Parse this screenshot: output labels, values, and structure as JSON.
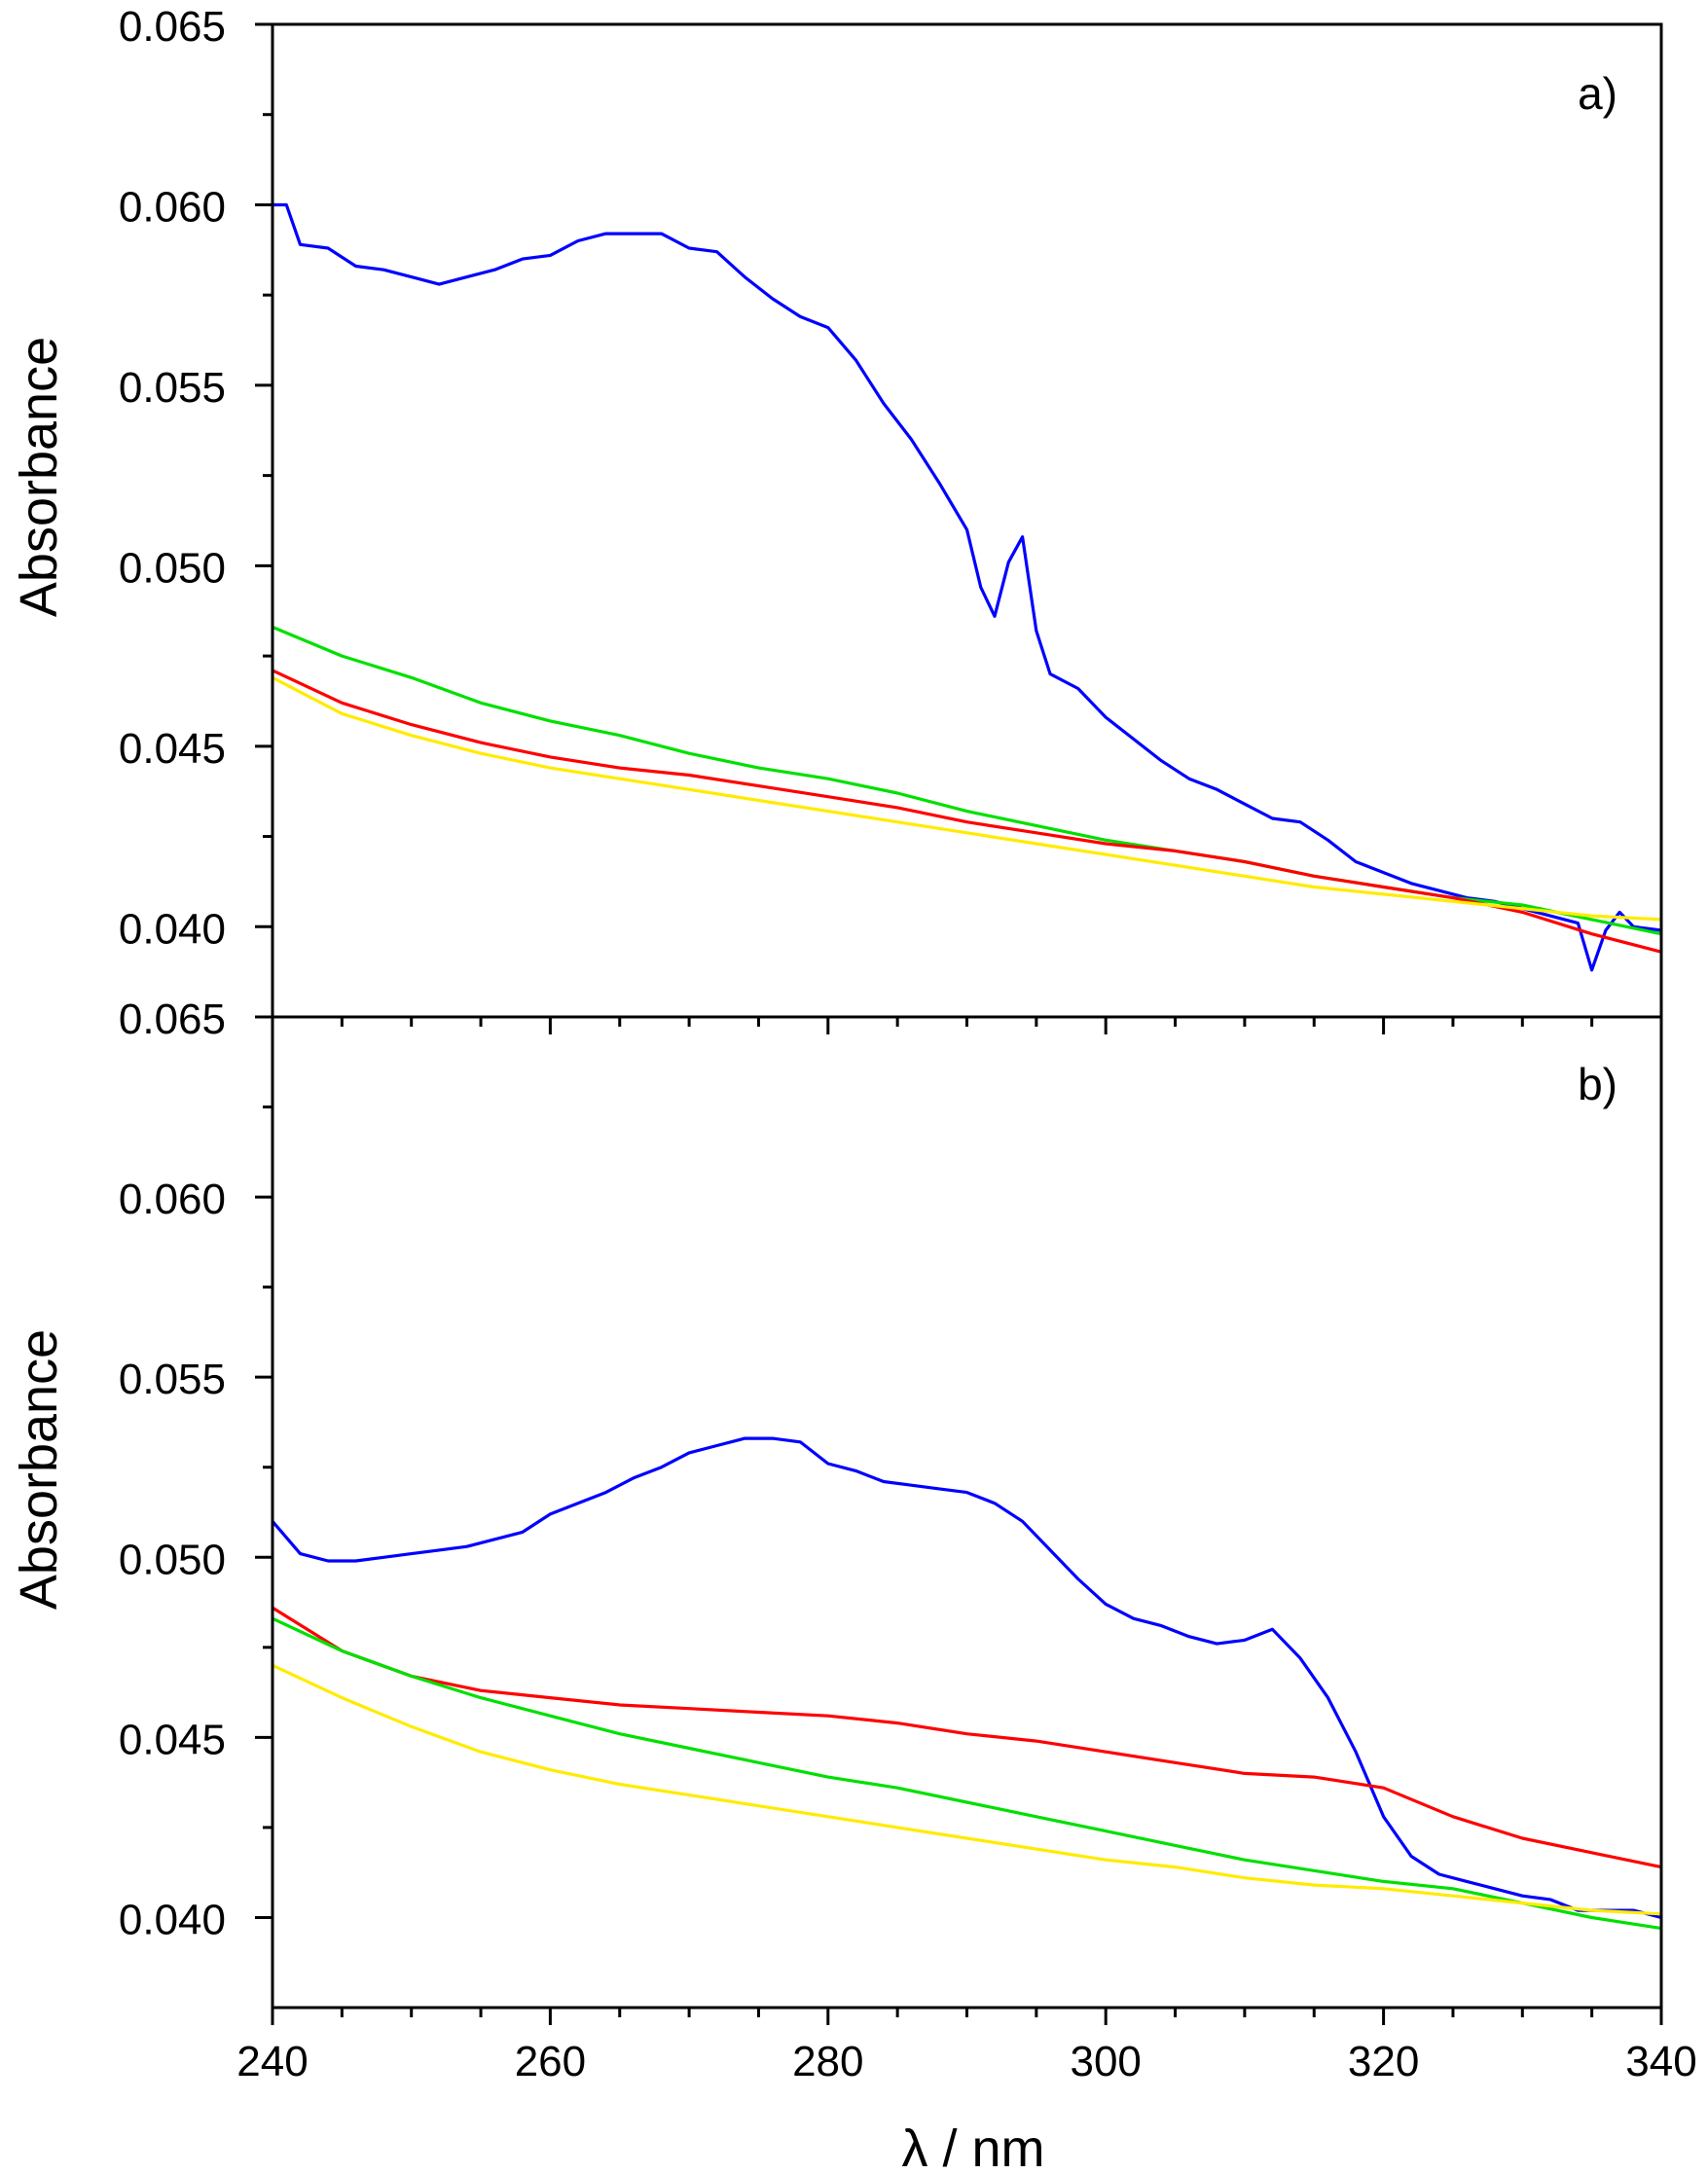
{
  "chart_data": [
    {
      "panel_label": "a)",
      "type": "line",
      "title": "",
      "xlabel": "λ / nm",
      "ylabel": "Absorbance",
      "xlim": [
        240,
        340
      ],
      "ylim": [
        0.0375,
        0.065
      ],
      "xticks": [
        240,
        260,
        280,
        300,
        320,
        340
      ],
      "xtick_labels": [
        "240",
        "260",
        "280",
        "300",
        "320",
        "340"
      ],
      "yticks": [
        0.04,
        0.045,
        0.05,
        0.055,
        0.06,
        0.065
      ],
      "ytick_labels": [
        "0.040",
        "0.045",
        "0.050",
        "0.055",
        "0.060",
        "0.065"
      ],
      "grid": false,
      "legend": "none",
      "series": [
        {
          "name": "blue",
          "color": "#0000ff",
          "x": [
            240,
            241,
            242,
            244,
            246,
            248,
            250,
            252,
            254,
            256,
            258,
            260,
            262,
            264,
            266,
            268,
            270,
            272,
            274,
            276,
            278,
            280,
            282,
            284,
            286,
            288,
            290,
            291,
            292,
            293,
            294,
            295,
            296,
            298,
            300,
            302,
            304,
            306,
            308,
            310,
            312,
            314,
            316,
            318,
            320,
            322,
            324,
            326,
            328,
            330,
            332,
            334,
            335,
            336,
            337,
            338,
            340
          ],
          "y": [
            0.06,
            0.06,
            0.0589,
            0.0588,
            0.0583,
            0.0582,
            0.058,
            0.0578,
            0.058,
            0.0582,
            0.0585,
            0.0586,
            0.059,
            0.0592,
            0.0592,
            0.0592,
            0.0588,
            0.0587,
            0.058,
            0.0574,
            0.0569,
            0.0566,
            0.0557,
            0.0545,
            0.0535,
            0.0523,
            0.051,
            0.0494,
            0.0486,
            0.0501,
            0.0508,
            0.0482,
            0.047,
            0.0466,
            0.0458,
            0.0452,
            0.0446,
            0.0441,
            0.0438,
            0.0434,
            0.043,
            0.0429,
            0.0424,
            0.0418,
            0.0415,
            0.0412,
            0.041,
            0.0408,
            0.0407,
            0.0405,
            0.0403,
            0.0401,
            0.0388,
            0.0399,
            0.0404,
            0.04,
            0.0399
          ]
        },
        {
          "name": "green",
          "color": "#00e000",
          "x": [
            240,
            245,
            250,
            255,
            260,
            265,
            270,
            275,
            280,
            285,
            290,
            295,
            300,
            305,
            310,
            315,
            320,
            325,
            330,
            335,
            340
          ],
          "y": [
            0.0483,
            0.0475,
            0.0469,
            0.0462,
            0.0457,
            0.0453,
            0.0448,
            0.0444,
            0.0441,
            0.0437,
            0.0432,
            0.0428,
            0.0424,
            0.0421,
            0.0418,
            0.0414,
            0.0411,
            0.0408,
            0.0406,
            0.0402,
            0.0398
          ]
        },
        {
          "name": "red",
          "color": "#ff0000",
          "x": [
            240,
            245,
            250,
            255,
            260,
            265,
            270,
            275,
            280,
            285,
            290,
            295,
            300,
            305,
            310,
            315,
            320,
            325,
            330,
            335,
            340
          ],
          "y": [
            0.0471,
            0.0462,
            0.0456,
            0.0451,
            0.0447,
            0.0444,
            0.0442,
            0.0439,
            0.0436,
            0.0433,
            0.0429,
            0.0426,
            0.0423,
            0.0421,
            0.0418,
            0.0414,
            0.0411,
            0.0408,
            0.0404,
            0.0398,
            0.0393
          ]
        },
        {
          "name": "yellow",
          "color": "#ffeb00",
          "x": [
            240,
            245,
            250,
            255,
            260,
            265,
            270,
            275,
            280,
            285,
            290,
            295,
            300,
            305,
            310,
            315,
            320,
            325,
            330,
            335,
            340
          ],
          "y": [
            0.0469,
            0.0459,
            0.0453,
            0.0448,
            0.0444,
            0.0441,
            0.0438,
            0.0435,
            0.0432,
            0.0429,
            0.0426,
            0.0423,
            0.042,
            0.0417,
            0.0414,
            0.0411,
            0.0409,
            0.0407,
            0.0405,
            0.0403,
            0.0402
          ]
        }
      ]
    },
    {
      "panel_label": "b)",
      "type": "line",
      "title": "",
      "xlabel": "λ / nm",
      "ylabel": "Absorbance",
      "xlim": [
        240,
        340
      ],
      "ylim": [
        0.0375,
        0.065
      ],
      "xticks": [
        240,
        260,
        280,
        300,
        320,
        340
      ],
      "xtick_labels": [
        "240",
        "260",
        "280",
        "300",
        "320",
        "340"
      ],
      "yticks": [
        0.04,
        0.045,
        0.05,
        0.055,
        0.06,
        0.065
      ],
      "ytick_labels": [
        "0.040",
        "0.045",
        "0.050",
        "0.055",
        "0.060",
        "0.065"
      ],
      "grid": false,
      "legend": "none",
      "series": [
        {
          "name": "blue",
          "color": "#0000ff",
          "x": [
            240,
            242,
            244,
            246,
            248,
            250,
            252,
            254,
            256,
            258,
            260,
            262,
            264,
            266,
            268,
            270,
            272,
            274,
            276,
            278,
            280,
            282,
            284,
            286,
            288,
            290,
            292,
            294,
            296,
            298,
            300,
            302,
            304,
            306,
            308,
            310,
            312,
            314,
            316,
            318,
            320,
            322,
            324,
            326,
            328,
            330,
            332,
            334,
            336,
            338,
            340
          ],
          "y": [
            0.051,
            0.0501,
            0.0499,
            0.0499,
            0.05,
            0.0501,
            0.0502,
            0.0503,
            0.0505,
            0.0507,
            0.0512,
            0.0515,
            0.0518,
            0.0522,
            0.0525,
            0.0529,
            0.0531,
            0.0533,
            0.0533,
            0.0532,
            0.0526,
            0.0524,
            0.0521,
            0.052,
            0.0519,
            0.0518,
            0.0515,
            0.051,
            0.0502,
            0.0494,
            0.0487,
            0.0483,
            0.0481,
            0.0478,
            0.0476,
            0.0477,
            0.048,
            0.0472,
            0.0461,
            0.0446,
            0.0428,
            0.0417,
            0.0412,
            0.041,
            0.0408,
            0.0406,
            0.0405,
            0.0402,
            0.0402,
            0.0402,
            0.04
          ]
        },
        {
          "name": "red",
          "color": "#ff0000",
          "x": [
            240,
            245,
            250,
            255,
            260,
            265,
            270,
            275,
            280,
            285,
            290,
            295,
            300,
            305,
            310,
            315,
            320,
            325,
            330,
            335,
            340
          ],
          "y": [
            0.0486,
            0.0474,
            0.0467,
            0.0463,
            0.0461,
            0.0459,
            0.0458,
            0.0457,
            0.0456,
            0.0454,
            0.0451,
            0.0449,
            0.0446,
            0.0443,
            0.044,
            0.0439,
            0.0436,
            0.0428,
            0.0422,
            0.0418,
            0.0414
          ]
        },
        {
          "name": "green",
          "color": "#00e000",
          "x": [
            240,
            245,
            250,
            255,
            260,
            265,
            270,
            275,
            280,
            285,
            290,
            295,
            300,
            305,
            310,
            315,
            320,
            325,
            330,
            335,
            340
          ],
          "y": [
            0.0483,
            0.0474,
            0.0467,
            0.0461,
            0.0456,
            0.0451,
            0.0447,
            0.0443,
            0.0439,
            0.0436,
            0.0432,
            0.0428,
            0.0424,
            0.042,
            0.0416,
            0.0413,
            0.041,
            0.0408,
            0.0404,
            0.04,
            0.0397
          ]
        },
        {
          "name": "yellow",
          "color": "#ffeb00",
          "x": [
            240,
            245,
            250,
            255,
            260,
            265,
            270,
            275,
            280,
            285,
            290,
            295,
            300,
            305,
            310,
            315,
            320,
            325,
            330,
            335,
            340
          ],
          "y": [
            0.047,
            0.0461,
            0.0453,
            0.0446,
            0.0441,
            0.0437,
            0.0434,
            0.0431,
            0.0428,
            0.0425,
            0.0422,
            0.0419,
            0.0416,
            0.0414,
            0.0411,
            0.0409,
            0.0408,
            0.0406,
            0.0404,
            0.0402,
            0.0401
          ]
        }
      ]
    }
  ]
}
